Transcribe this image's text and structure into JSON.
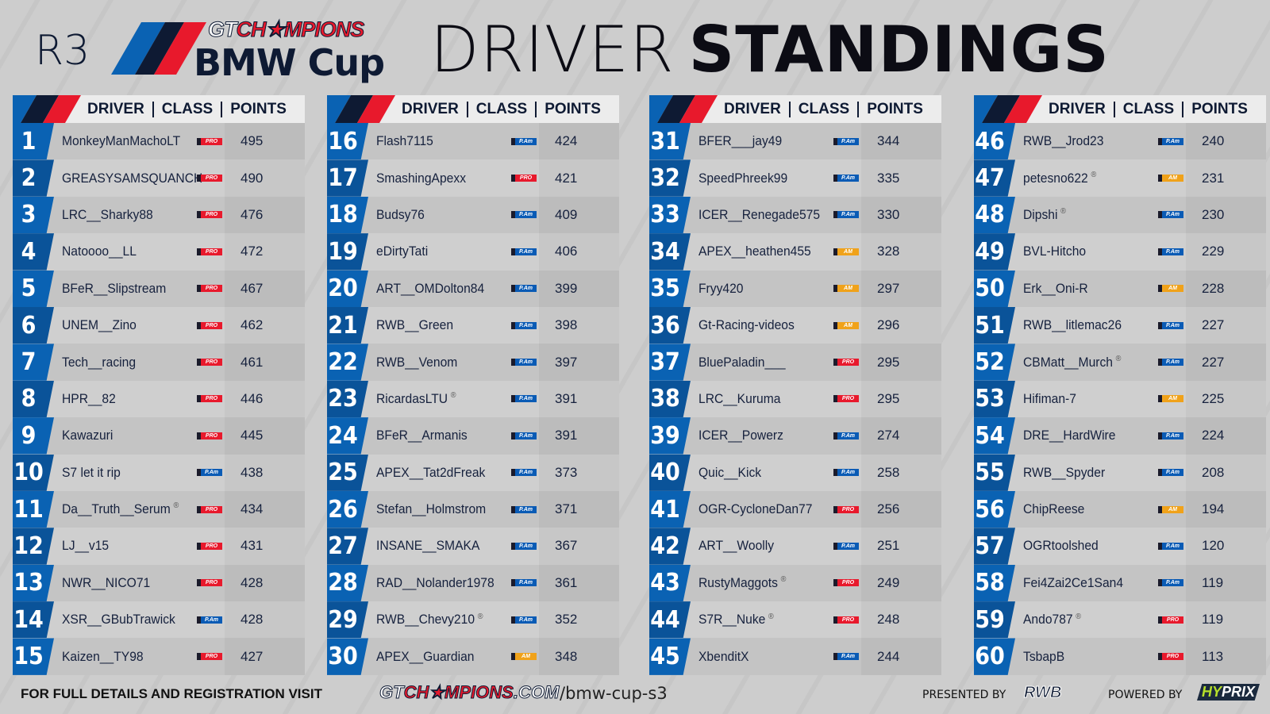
{
  "header": {
    "round": "R3",
    "logo_top": "GTCH★MPIONS",
    "logo_bmw": "BMW Cup",
    "title_thin": "DRIVER",
    "title_bold": "STANDINGS"
  },
  "table_headers": {
    "driver": "DRIVER",
    "class": "CLASS",
    "points": "POINTS"
  },
  "class_badges": {
    "PRO": {
      "label": "PRO",
      "color": "#e8192c"
    },
    "PAM": {
      "label": "P.Am",
      "color": "#0a5bb5"
    },
    "AM": {
      "label": "AM",
      "color": "#f0a21a"
    }
  },
  "colors": {
    "blue": "#0a62b3",
    "navy": "#0e1a33",
    "red": "#e8192c"
  },
  "columns": [
    [
      {
        "pos": "1",
        "name": "MonkeyManMachoLT",
        "cls": "PRO",
        "pts": "495"
      },
      {
        "pos": "2",
        "name": "GREASYSAMSQUANCH",
        "cls": "PRO",
        "pts": "490"
      },
      {
        "pos": "3",
        "name": "LRC__Sharky88",
        "cls": "PRO",
        "pts": "476"
      },
      {
        "pos": "4",
        "name": "Natoooo__LL",
        "cls": "PRO",
        "pts": "472"
      },
      {
        "pos": "5",
        "name": "BFeR__Slipstream",
        "cls": "PRO",
        "pts": "467"
      },
      {
        "pos": "6",
        "name": "UNEM__Zino",
        "cls": "PRO",
        "pts": "462"
      },
      {
        "pos": "7",
        "name": "Tech__racing",
        "cls": "PRO",
        "pts": "461"
      },
      {
        "pos": "8",
        "name": "HPR__82",
        "cls": "PRO",
        "pts": "446"
      },
      {
        "pos": "9",
        "name": "Kawazuri",
        "cls": "PRO",
        "pts": "445"
      },
      {
        "pos": "10",
        "name": "S7 let it rip",
        "cls": "PAM",
        "pts": "438"
      },
      {
        "pos": "11",
        "name": "Da__Truth__Serum",
        "mark": "®",
        "cls": "PRO",
        "pts": "434"
      },
      {
        "pos": "12",
        "name": "LJ__v15",
        "cls": "PRO",
        "pts": "431"
      },
      {
        "pos": "13",
        "name": "NWR__NICO71",
        "cls": "PRO",
        "pts": "428"
      },
      {
        "pos": "14",
        "name": "XSR__GBubTrawick",
        "cls": "PAM",
        "pts": "428"
      },
      {
        "pos": "15",
        "name": "Kaizen__TY98",
        "cls": "PRO",
        "pts": "427"
      }
    ],
    [
      {
        "pos": "16",
        "name": "Flash7115",
        "cls": "PAM",
        "pts": "424"
      },
      {
        "pos": "17",
        "name": "SmashingApexx",
        "cls": "PRO",
        "pts": "421"
      },
      {
        "pos": "18",
        "name": "Budsy76",
        "cls": "PAM",
        "pts": "409"
      },
      {
        "pos": "19",
        "name": "eDirtyTati",
        "cls": "PAM",
        "pts": "406"
      },
      {
        "pos": "20",
        "name": "ART__OMDolton84",
        "cls": "PAM",
        "pts": "399"
      },
      {
        "pos": "21",
        "name": "RWB__Green",
        "cls": "PAM",
        "pts": "398"
      },
      {
        "pos": "22",
        "name": "RWB__Venom",
        "cls": "PAM",
        "pts": "397"
      },
      {
        "pos": "23",
        "name": "RicardasLTU",
        "mark": "®",
        "cls": "PAM",
        "pts": "391"
      },
      {
        "pos": "24",
        "name": "BFeR__Armanis",
        "cls": "PAM",
        "pts": "391"
      },
      {
        "pos": "25",
        "name": "APEX__Tat2dFreak",
        "cls": "PAM",
        "pts": "373"
      },
      {
        "pos": "26",
        "name": "Stefan__Holmstrom",
        "cls": "PAM",
        "pts": "371"
      },
      {
        "pos": "27",
        "name": "INSANE__SMAKA",
        "cls": "PAM",
        "pts": "367"
      },
      {
        "pos": "28",
        "name": "RAD__Nolander1978",
        "cls": "PAM",
        "pts": "361"
      },
      {
        "pos": "29",
        "name": "RWB__Chevy210",
        "mark": "®",
        "cls": "PAM",
        "pts": "352"
      },
      {
        "pos": "30",
        "name": "APEX__Guardian",
        "cls": "AM",
        "pts": "348"
      }
    ],
    [
      {
        "pos": "31",
        "name": "BFER___jay49",
        "cls": "PAM",
        "pts": "344"
      },
      {
        "pos": "32",
        "name": "SpeedPhreek99",
        "cls": "PAM",
        "pts": "335"
      },
      {
        "pos": "33",
        "name": "ICER__Renegade575",
        "cls": "PAM",
        "pts": "330"
      },
      {
        "pos": "34",
        "name": "APEX__heathen455",
        "cls": "AM",
        "pts": "328"
      },
      {
        "pos": "35",
        "name": "Fryy420",
        "cls": "AM",
        "pts": "297"
      },
      {
        "pos": "36",
        "name": "Gt-Racing-videos",
        "cls": "AM",
        "pts": "296"
      },
      {
        "pos": "37",
        "name": "BluePaladin___",
        "cls": "PRO",
        "pts": "295"
      },
      {
        "pos": "38",
        "name": "LRC__Kuruma",
        "cls": "PRO",
        "pts": "295"
      },
      {
        "pos": "39",
        "name": "ICER__Powerz",
        "cls": "PAM",
        "pts": "274"
      },
      {
        "pos": "40",
        "name": "Quic__Kick",
        "cls": "PAM",
        "pts": "258"
      },
      {
        "pos": "41",
        "name": "OGR-CycloneDan77",
        "cls": "PRO",
        "pts": "256"
      },
      {
        "pos": "42",
        "name": "ART__Woolly",
        "cls": "PAM",
        "pts": "251"
      },
      {
        "pos": "43",
        "name": "RustyMaggots",
        "mark": "®",
        "cls": "PRO",
        "pts": "249"
      },
      {
        "pos": "44",
        "name": "S7R__Nuke",
        "mark": "®",
        "cls": "PRO",
        "pts": "248"
      },
      {
        "pos": "45",
        "name": "XbenditX",
        "cls": "PAM",
        "pts": "244"
      }
    ],
    [
      {
        "pos": "46",
        "name": "RWB__Jrod23",
        "cls": "PAM",
        "pts": "240"
      },
      {
        "pos": "47",
        "name": "petesno622",
        "mark": "®",
        "cls": "AM",
        "pts": "231"
      },
      {
        "pos": "48",
        "name": "Dipshi",
        "mark": "®",
        "cls": "PAM",
        "pts": "230"
      },
      {
        "pos": "49",
        "name": "BVL-Hitcho",
        "cls": "PAM",
        "pts": "229"
      },
      {
        "pos": "50",
        "name": "Erk__Oni-R",
        "cls": "AM",
        "pts": "228"
      },
      {
        "pos": "51",
        "name": "RWB__litlemac26",
        "cls": "PAM",
        "pts": "227"
      },
      {
        "pos": "52",
        "name": "CBMatt__Murch",
        "mark": "®",
        "cls": "PAM",
        "pts": "227"
      },
      {
        "pos": "53",
        "name": "Hifiman-7",
        "cls": "AM",
        "pts": "225"
      },
      {
        "pos": "54",
        "name": "DRE__HardWire",
        "cls": "PAM",
        "pts": "224"
      },
      {
        "pos": "55",
        "name": "RWB__Spyder",
        "cls": "PAM",
        "pts": "208"
      },
      {
        "pos": "56",
        "name": "ChipReese",
        "cls": "AM",
        "pts": "194"
      },
      {
        "pos": "57",
        "name": "OGRtoolshed",
        "cls": "PAM",
        "pts": "120"
      },
      {
        "pos": "58",
        "name": "Fei4Zai2Ce1San4",
        "cls": "PAM",
        "pts": "119"
      },
      {
        "pos": "59",
        "name": "Ando787",
        "mark": "®",
        "cls": "PRO",
        "pts": "119"
      },
      {
        "pos": "60",
        "name": "TsbapB",
        "cls": "PRO",
        "pts": "113"
      }
    ]
  ],
  "footer": {
    "visit": "FOR FULL DETAILS AND REGISTRATION VISIT",
    "site_logo": "GTCH★MPIONS.COM",
    "url": "/bmw-cup-s3",
    "presented_by": "PRESENTED BY",
    "rwb_logo": "RWB",
    "powered_by": "POWERED BY",
    "hyprix_logo": "HYPRIX"
  }
}
